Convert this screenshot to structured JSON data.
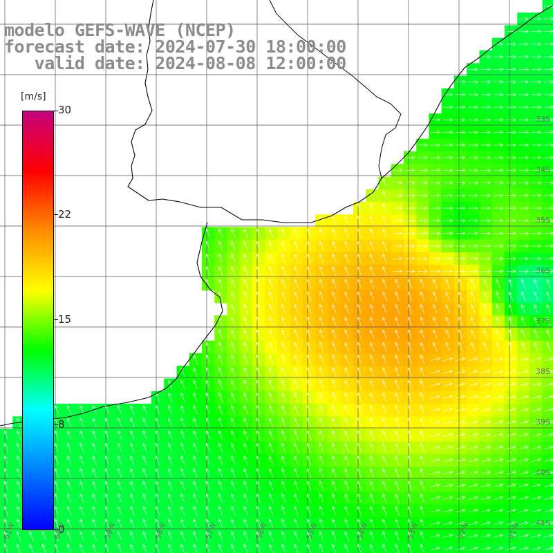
{
  "header": {
    "line1": "modelo GEFS-WAVE (NCEP)",
    "line2": "forecast date: 2024-07-30 18:00:00",
    "line3": "   valid date: 2024-08-08 12:00:00"
  },
  "colorbar": {
    "unit": "[m/s]",
    "ticks": [
      "30",
      "22",
      "15",
      "8",
      "0"
    ],
    "colors": [
      "#c7007d",
      "#ff0000",
      "#ff8c00",
      "#ffff00",
      "#00ff00",
      "#00ffff",
      "#0080ff",
      "#0000ff"
    ]
  },
  "grid": {
    "lat_labels": [
      "33S",
      "34S",
      "35S",
      "36S",
      "37S",
      "38S",
      "39S",
      "40S",
      "41S"
    ],
    "lon_labels": [
      "61W",
      "60W",
      "59W",
      "58W",
      "57W",
      "56W",
      "55W",
      "54W",
      "53W",
      "52W",
      "51W"
    ]
  },
  "colors": {
    "land": "#ffffff",
    "grid_line": "#4a4a4a",
    "coast_line": "#000000",
    "arrow": "#ffffff",
    "title": "#8c8c8c"
  }
}
